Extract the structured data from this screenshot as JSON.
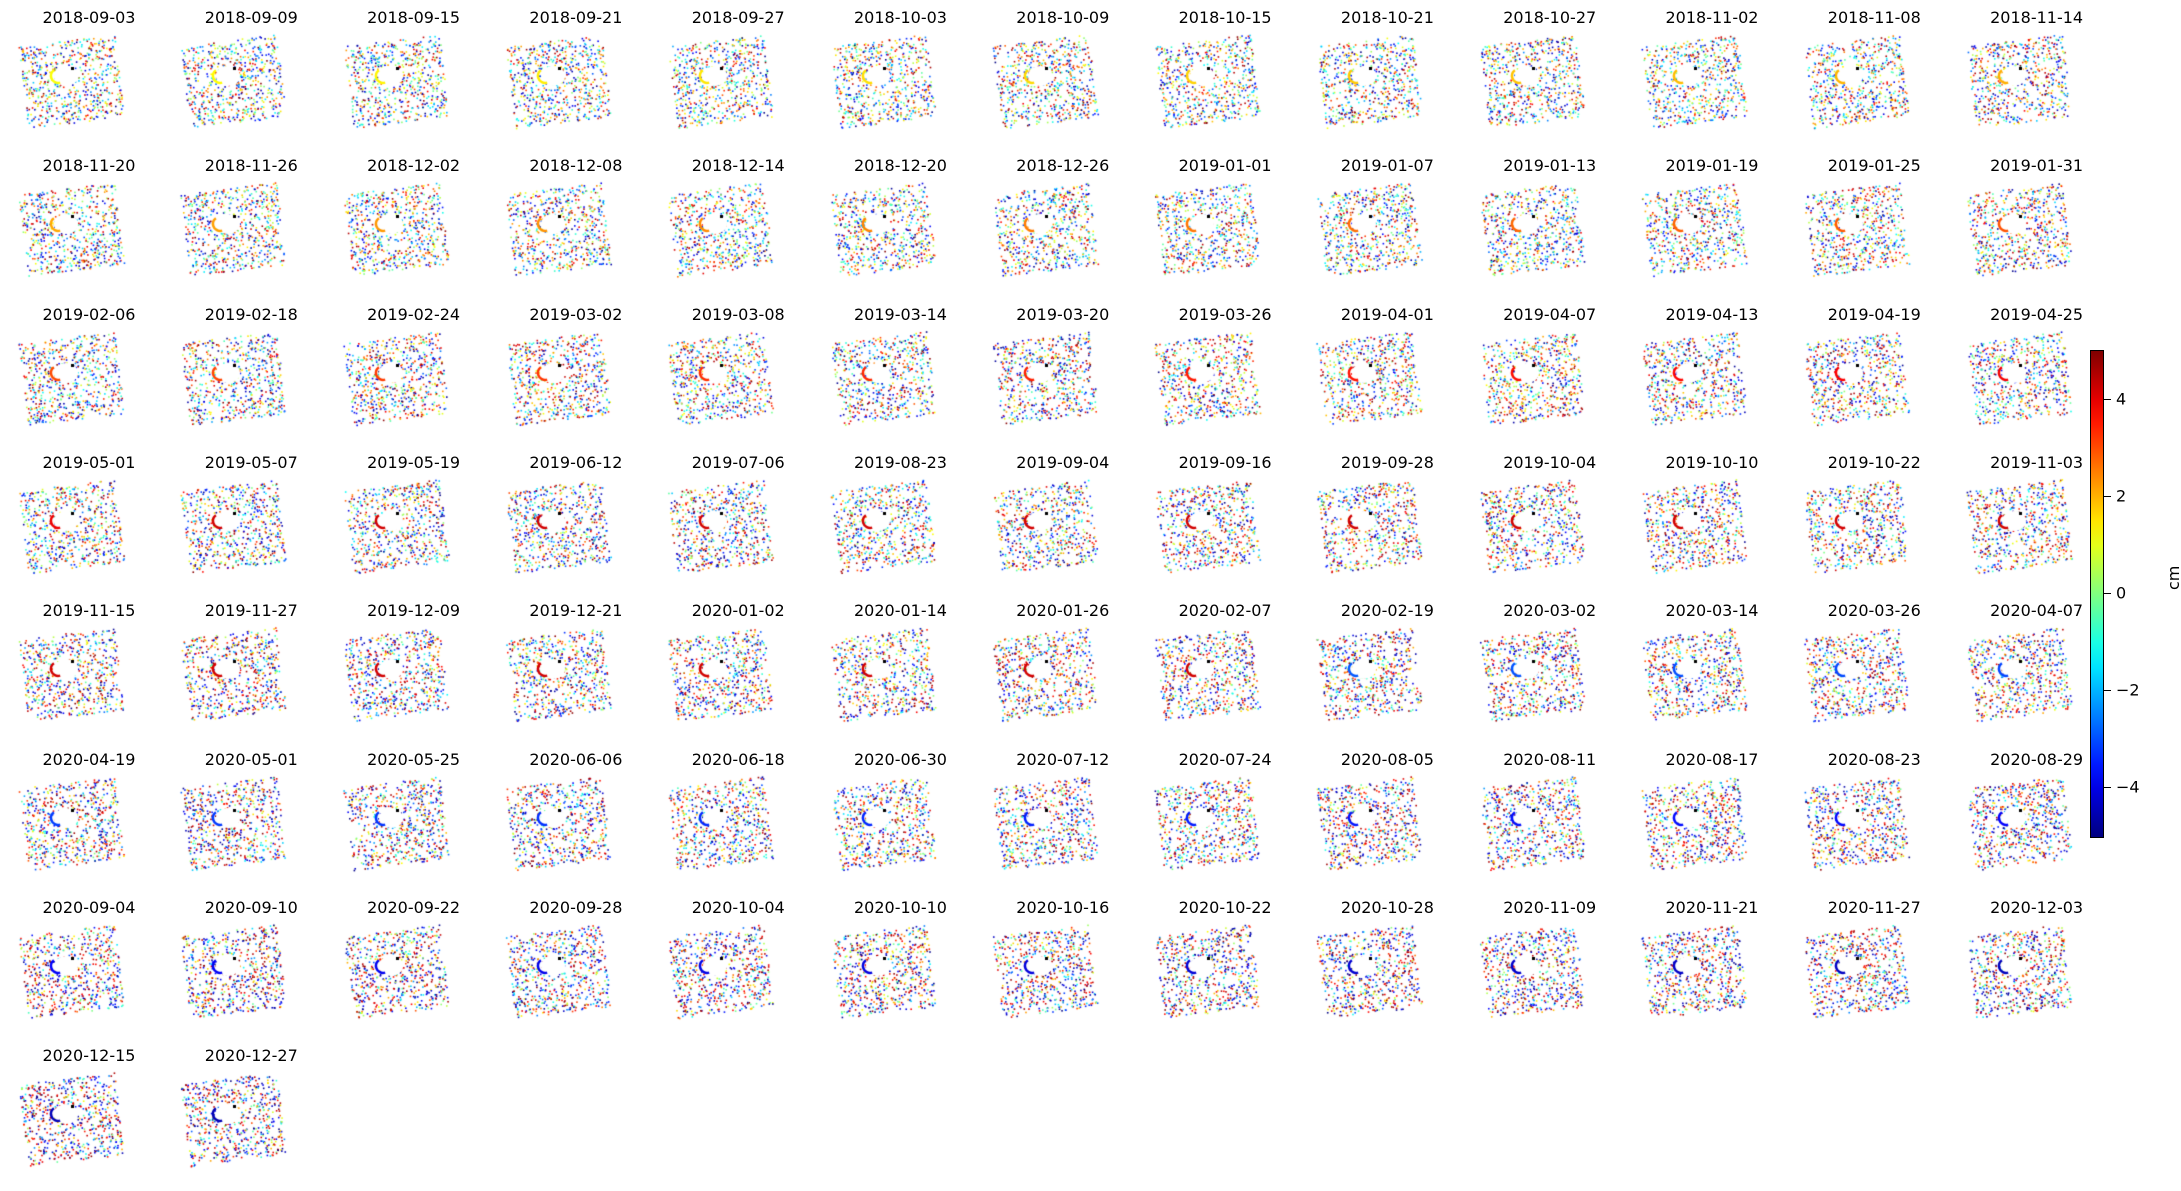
{
  "chart_data": {
    "type": "scatter",
    "description_grid": {
      "columns": 13,
      "panels": 93
    },
    "dates": [
      "2018-09-03",
      "2018-09-09",
      "2018-09-15",
      "2018-09-21",
      "2018-09-27",
      "2018-10-03",
      "2018-10-09",
      "2018-10-15",
      "2018-10-21",
      "2018-10-27",
      "2018-11-02",
      "2018-11-08",
      "2018-11-14",
      "2018-11-20",
      "2018-11-26",
      "2018-12-02",
      "2018-12-08",
      "2018-12-14",
      "2018-12-20",
      "2018-12-26",
      "2019-01-01",
      "2019-01-07",
      "2019-01-13",
      "2019-01-19",
      "2019-01-25",
      "2019-01-31",
      "2019-02-06",
      "2019-02-18",
      "2019-02-24",
      "2019-03-02",
      "2019-03-08",
      "2019-03-14",
      "2019-03-20",
      "2019-03-26",
      "2019-04-01",
      "2019-04-07",
      "2019-04-13",
      "2019-04-19",
      "2019-04-25",
      "2019-05-01",
      "2019-05-07",
      "2019-05-19",
      "2019-06-12",
      "2019-07-06",
      "2019-08-23",
      "2019-09-04",
      "2019-09-16",
      "2019-09-28",
      "2019-10-04",
      "2019-10-10",
      "2019-10-22",
      "2019-11-03",
      "2019-11-15",
      "2019-11-27",
      "2019-12-09",
      "2019-12-21",
      "2020-01-02",
      "2020-01-14",
      "2020-01-26",
      "2020-02-07",
      "2020-02-19",
      "2020-03-02",
      "2020-03-14",
      "2020-03-26",
      "2020-04-07",
      "2020-04-19",
      "2020-05-01",
      "2020-05-25",
      "2020-06-06",
      "2020-06-18",
      "2020-06-30",
      "2020-07-12",
      "2020-07-24",
      "2020-08-05",
      "2020-08-11",
      "2020-08-17",
      "2020-08-23",
      "2020-08-29",
      "2020-09-04",
      "2020-09-10",
      "2020-09-22",
      "2020-09-28",
      "2020-10-04",
      "2020-10-10",
      "2020-10-16",
      "2020-10-22",
      "2020-10-28",
      "2020-11-09",
      "2020-11-21",
      "2020-11-27",
      "2020-12-03",
      "2020-12-15",
      "2020-12-27"
    ],
    "colormap": "jet",
    "colorbar": {
      "range": [
        -5,
        5
      ],
      "ticks": [
        -4,
        -2,
        0,
        2,
        4
      ],
      "tick_labels": [
        "−4",
        "−2",
        "0",
        "2",
        "4"
      ],
      "unit_label": "cm"
    },
    "grid": false,
    "axes_visible": false
  }
}
